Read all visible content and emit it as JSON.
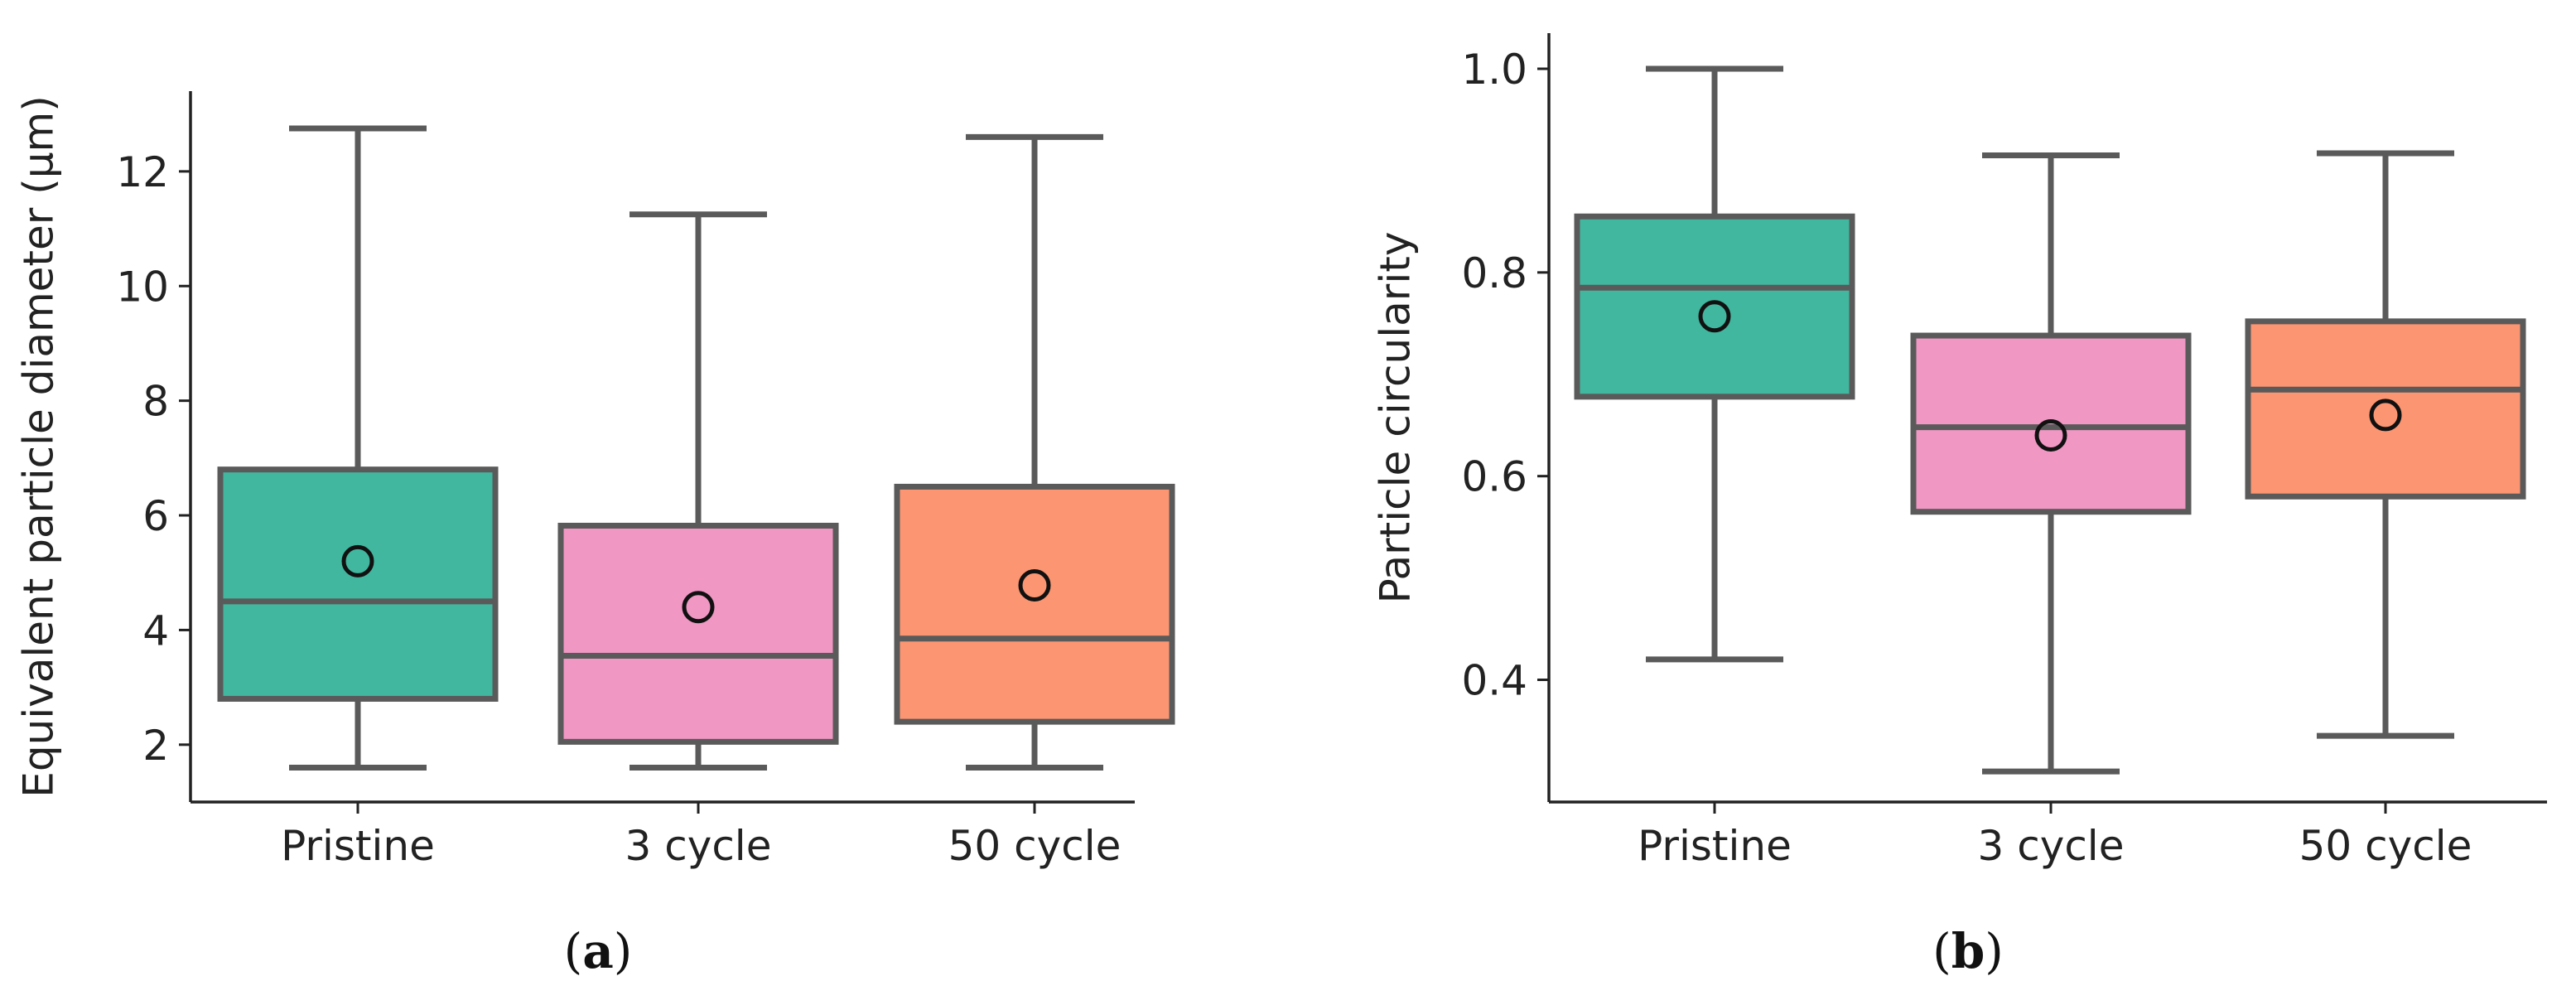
{
  "chart_data": [
    {
      "type": "box",
      "panel": "a",
      "panel_label": {
        "open": "(",
        "letter": "a",
        "close": ")"
      },
      "ylabel": "Equivalent particle diameter (μm)",
      "xlabel": "",
      "ylim": [
        1.0,
        13.4
      ],
      "yticks": [
        2,
        4,
        6,
        8,
        10,
        12
      ],
      "categories": [
        "Pristine",
        "3 cycle",
        "50 cycle"
      ],
      "colors": [
        "#41b79f",
        "#f097c3",
        "#fc9571"
      ],
      "line_color": "#5a5a5a",
      "boxes": [
        {
          "category": "Pristine",
          "whisker_low": 1.6,
          "q1": 2.8,
          "median": 4.5,
          "q3": 6.8,
          "whisker_high": 12.75,
          "mean": 5.2
        },
        {
          "category": "3 cycle",
          "whisker_low": 1.6,
          "q1": 2.05,
          "median": 3.55,
          "q3": 5.82,
          "whisker_high": 11.25,
          "mean": 4.4
        },
        {
          "category": "50 cycle",
          "whisker_low": 1.6,
          "q1": 2.4,
          "median": 3.85,
          "q3": 6.5,
          "whisker_high": 12.6,
          "mean": 4.78
        }
      ]
    },
    {
      "type": "box",
      "panel": "b",
      "panel_label": {
        "open": "(",
        "letter": "b",
        "close": ")"
      },
      "ylabel": "Particle circularity",
      "xlabel": "",
      "ylim": [
        0.28,
        1.035
      ],
      "yticks": [
        0.4,
        0.6,
        0.8,
        1.0
      ],
      "ytick_labels": [
        "0.4",
        "0.6",
        "0.8",
        "1.0"
      ],
      "categories": [
        "Pristine",
        "3 cycle",
        "50 cycle"
      ],
      "colors": [
        "#41b79f",
        "#f097c3",
        "#fc9571"
      ],
      "line_color": "#5a5a5a",
      "boxes": [
        {
          "category": "Pristine",
          "whisker_low": 0.42,
          "q1": 0.678,
          "median": 0.785,
          "q3": 0.855,
          "whisker_high": 1.0,
          "mean": 0.757
        },
        {
          "category": "3 cycle",
          "whisker_low": 0.31,
          "q1": 0.565,
          "median": 0.648,
          "q3": 0.738,
          "whisker_high": 0.915,
          "mean": 0.64
        },
        {
          "category": "50 cycle",
          "whisker_low": 0.345,
          "q1": 0.58,
          "median": 0.685,
          "q3": 0.752,
          "whisker_high": 0.917,
          "mean": 0.66
        }
      ]
    }
  ]
}
